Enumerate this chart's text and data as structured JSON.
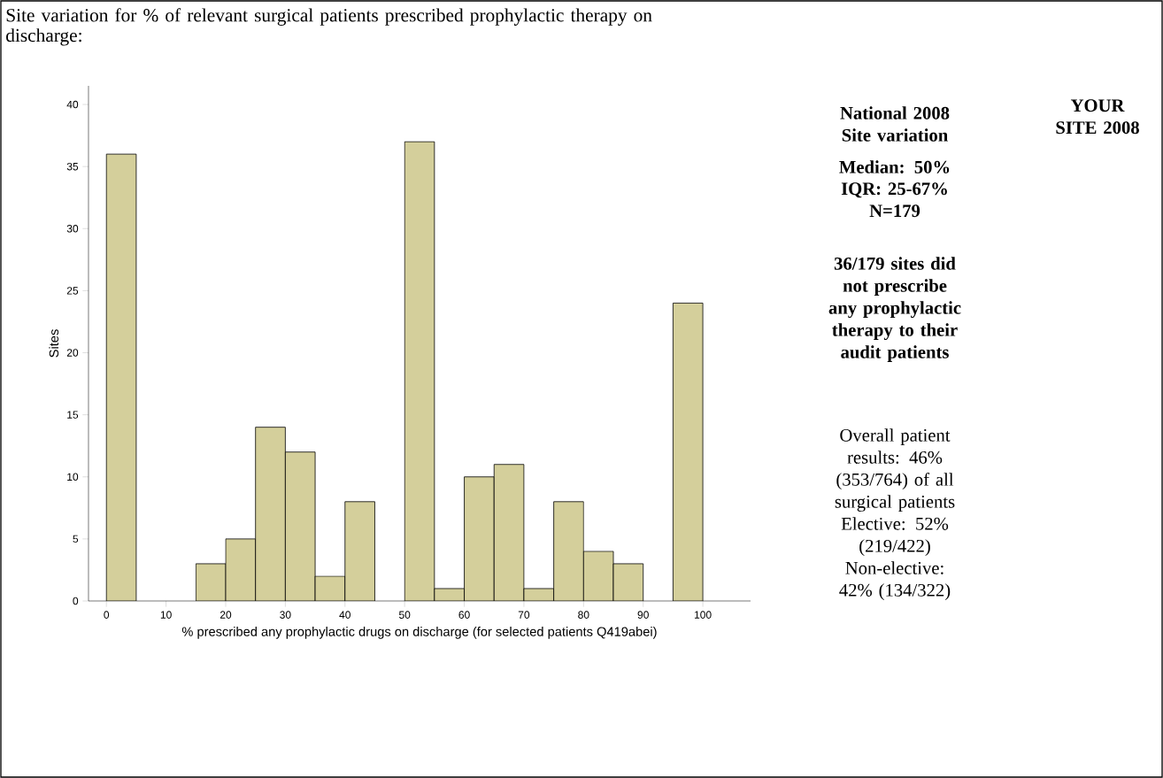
{
  "chart_data": {
    "type": "histogram",
    "title": "Site variation for % of relevant surgical patients prescribed prophylactic therapy on discharge:",
    "xlabel": "% prescribed any prophylactic drugs on discharge (for selected patients Q419abei)",
    "ylabel": "Sites",
    "bins": [
      0,
      5,
      10,
      15,
      20,
      25,
      30,
      35,
      40,
      45,
      50,
      55,
      60,
      65,
      70,
      75,
      80,
      85,
      90,
      95,
      100
    ],
    "values": [
      36,
      0,
      0,
      3,
      5,
      14,
      12,
      2,
      8,
      0,
      37,
      1,
      10,
      11,
      1,
      8,
      4,
      3,
      0,
      24
    ],
    "color": "#d4cf9b",
    "xlim": [
      -3,
      108
    ],
    "xticks": [
      0,
      10,
      20,
      30,
      40,
      50,
      60,
      70,
      80,
      90,
      100
    ],
    "ylim": [
      0,
      41.5
    ],
    "yticks": [
      0,
      5,
      10,
      15,
      20,
      25,
      30,
      35,
      40
    ],
    "grid": false,
    "annotations": [
      "National 2008 Site variation",
      "Median: 50%",
      "IQR: 25-67%",
      "N=179",
      "36/179 sites did not prescribe any prophylactic therapy to their audit patients",
      "YOUR SITE 2008",
      "Overall patient results: 46% (353/764) of all surgical patients",
      "Elective: 52% (219/422)",
      "Non-elective: 42% (134/322)"
    ]
  }
}
